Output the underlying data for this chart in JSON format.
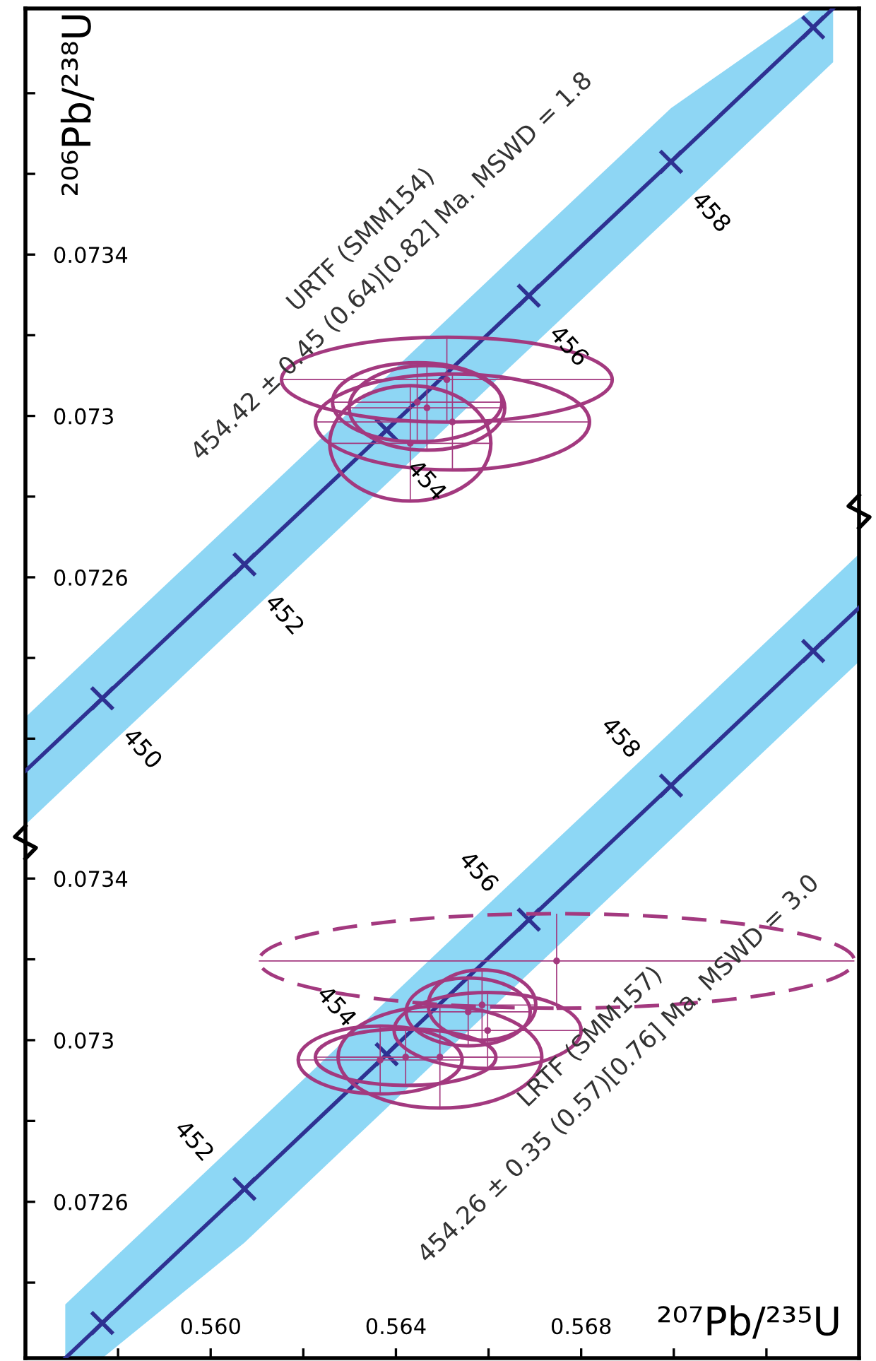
{
  "chart_data": [
    {
      "type": "scatter",
      "ylabel": "²⁰⁶Pb/²³⁸U",
      "xlim": [
        0.556,
        0.574
      ],
      "ylim": [
        0.071943,
        0.07401
      ],
      "tick_labels": "y",
      "yticks": [
        {
          "value": 0.0722,
          "label": null
        },
        {
          "value": 0.0724,
          "label": null
        },
        0.0726,
        {
          "value": 0.0728,
          "label": null
        },
        0.073,
        {
          "value": 0.0732,
          "label": null
        },
        0.0734,
        {
          "value": 0.0736,
          "label": null
        },
        {
          "value": 0.0738,
          "label": null
        }
      ],
      "series": [
        {
          "type": "line",
          "color": "#2e3192",
          "marker": "cross",
          "x": [
            0.556,
            0.55766,
            0.56073,
            0.5638,
            0.56687,
            0.56994,
            0.57301,
            0.57344
          ],
          "values": [
            0.07212,
            0.0723,
            0.072632,
            0.072965,
            0.073298,
            0.07363,
            0.073963,
            0.07401
          ],
          "lower": [
            0.071987,
            0.072167,
            0.072499,
            0.072832,
            0.073165,
            0.073497,
            0.07383,
            0.073877
          ],
          "upper": [
            0.072253,
            0.072433,
            0.072765,
            0.073098,
            0.073431,
            0.073763,
            0.07401,
            0.07401
          ]
        },
        {
          "type": "scatter",
          "color": "#a3397f",
          "x": [
            0.5651,
            0.56522,
            0.56431,
            0.56446,
            0.56467
          ],
          "values": [
            0.07309,
            0.072985,
            0.072932,
            0.073034,
            0.07302
          ],
          "xerrors": [
            0.00357,
            0.00296,
            0.00174,
            0.00183,
            0.00168
          ],
          "errors": [
            0.000105,
            0.000119,
            0.000143,
            9.8e-05,
            0.000105
          ]
        }
      ],
      "annotations": [
        "URTF (SMM154)",
        "454.42 ± 0.45 (0.64)[0.82] Ma. MSWD = 1.8",
        {
          "text": "450",
          "x": 0.55766,
          "y": 0.0723
        },
        {
          "text": "452",
          "x": 0.56073,
          "y": 0.072632
        },
        {
          "text": "454",
          "x": 0.5638,
          "y": 0.072965
        },
        {
          "text": "456",
          "x": 0.56687,
          "y": 0.073298
        },
        {
          "text": "458",
          "x": 0.56994,
          "y": 0.07363
        }
      ]
    },
    {
      "type": "scatter",
      "xlabel": "²⁰⁷Pb/²³⁵U",
      "xlim": [
        0.556,
        0.574
      ],
      "ylim": [
        0.072213,
        0.074308
      ],
      "xticks": [
        {
          "value": 0.558,
          "label": null
        },
        {
          "value": 0.56,
          "label": "0.560"
        },
        {
          "value": 0.562,
          "label": null
        },
        {
          "value": 0.564,
          "label": "0.564"
        },
        {
          "value": 0.566,
          "label": null
        },
        {
          "value": 0.568,
          "label": "0.568"
        },
        {
          "value": 0.57,
          "label": null
        },
        {
          "value": 0.572,
          "label": null
        }
      ],
      "yticks": [
        {
          "value": 0.0724,
          "label": null
        },
        0.0726,
        {
          "value": 0.0728,
          "label": null
        },
        0.073,
        {
          "value": 0.0732,
          "label": null
        },
        0.0734
      ],
      "series": [
        {
          "type": "line",
          "color": "#2e3192",
          "marker": "cross",
          "x": [
            0.55686,
            0.55766,
            0.56073,
            0.5638,
            0.56687,
            0.56994,
            0.57301,
            0.574
          ],
          "values": [
            0.072213,
            0.0723,
            0.072632,
            0.072965,
            0.073298,
            0.07363,
            0.073963,
            0.07407
          ],
          "lower": [
            0.072213,
            0.072213,
            0.072499,
            0.072832,
            0.073165,
            0.073497,
            0.07383,
            0.073937
          ],
          "upper": [
            0.072346,
            0.072433,
            0.072765,
            0.073098,
            0.073431,
            0.073763,
            0.074096,
            0.074203
          ]
        },
        {
          "type": "scatter",
          "color": "#a3397f",
          "x": [
            0.56366,
            0.56421,
            0.56495,
            0.56598,
            0.56586,
            0.56556
          ],
          "values": [
            0.072951,
            0.072958,
            0.072958,
            0.073024,
            0.073087,
            0.07307
          ],
          "xerrors": [
            0.00177,
            0.00195,
            0.0022,
            0.00202,
            0.00116,
            0.00134
          ],
          "errors": [
            8.4e-05,
            7e-05,
            0.000126,
            9.4e-05,
            8.7e-05,
            8.4e-05
          ]
        },
        {
          "type": "scatter",
          "color": "#a3397f",
          "line_style": "dashed",
          "x": [
            0.56747
          ],
          "values": [
            0.073196
          ],
          "xerrors": [
            0.00643
          ],
          "errors": [
            0.000117
          ]
        }
      ],
      "annotations": [
        "LRTF (SMM157)",
        "454.26 ± 0.35 (0.57)[0.76] Ma. MSWD = 3.0",
        {
          "text": "452",
          "x": 0.56073,
          "y": 0.072632
        },
        {
          "text": "454",
          "x": 0.5638,
          "y": 0.072965
        },
        {
          "text": "456",
          "x": 0.56687,
          "y": 0.073298
        },
        {
          "text": "458",
          "x": 0.56994,
          "y": 0.07363
        }
      ]
    }
  ]
}
